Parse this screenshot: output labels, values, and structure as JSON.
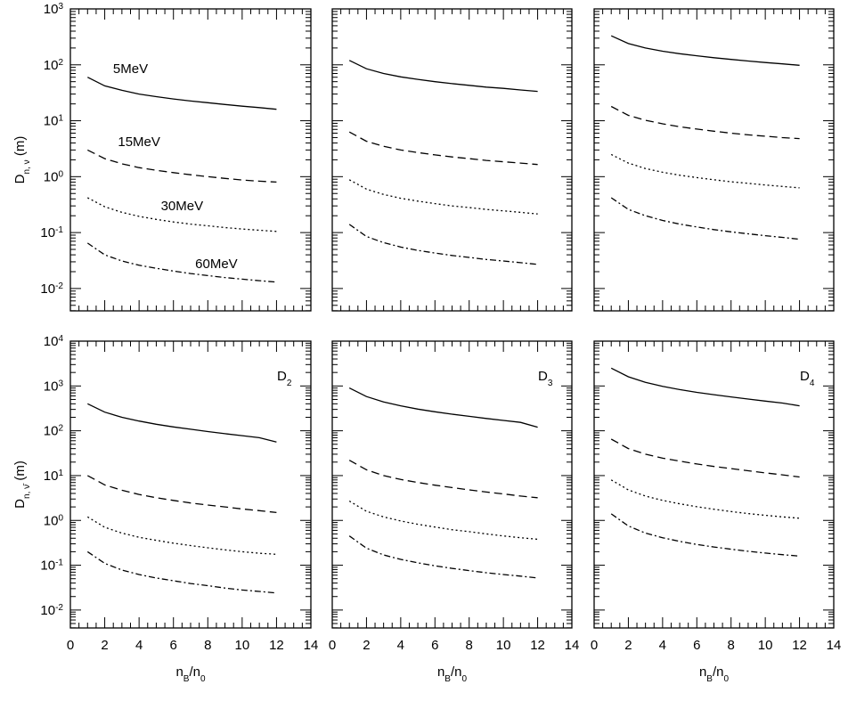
{
  "chart_data": {
    "type": "line",
    "x": [
      1,
      2,
      3,
      4,
      5,
      6,
      7,
      8,
      9,
      10,
      11,
      12
    ],
    "xlim": [
      0,
      14
    ],
    "x_ticks": [
      "0",
      "2",
      "4",
      "6",
      "8",
      "10",
      "12",
      "14"
    ],
    "xlabel": {
      "main": "n",
      "sub": "B",
      "sep": "/",
      "main2": "n",
      "sub2": "0"
    },
    "ylabel_top": {
      "main": "D",
      "sub": "n, ν",
      "unit": " (m)"
    },
    "ylabel_bottom": {
      "main": "D",
      "sub": "n, ν̄",
      "unit": " (m)"
    },
    "y_scale": "log",
    "rows": [
      {
        "ylim_exp": [
          -2.4,
          3
        ],
        "y_ticks": [
          {
            "base": "10",
            "exp": "3"
          },
          {
            "base": "10",
            "exp": "2"
          },
          {
            "base": "10",
            "exp": "1"
          },
          {
            "base": "10",
            "exp": "0"
          },
          {
            "base": "10",
            "exp": "-1"
          },
          {
            "base": "10",
            "exp": "-2"
          }
        ]
      },
      {
        "ylim_exp": [
          -2.4,
          4
        ],
        "y_ticks": [
          {
            "base": "10",
            "exp": "4"
          },
          {
            "base": "10",
            "exp": "3"
          },
          {
            "base": "10",
            "exp": "2"
          },
          {
            "base": "10",
            "exp": "1"
          },
          {
            "base": "10",
            "exp": "0"
          },
          {
            "base": "10",
            "exp": "-1"
          },
          {
            "base": "10",
            "exp": "-2"
          }
        ]
      }
    ],
    "series_styles": [
      {
        "name": "5MeV",
        "dash": "none"
      },
      {
        "name": "15MeV",
        "dash": "9 5"
      },
      {
        "name": "30MeV",
        "dash": "2 3"
      },
      {
        "name": "60MeV",
        "dash": "7 3 2 3"
      }
    ],
    "panels": [
      {
        "row": 0,
        "col": 0,
        "label": "",
        "series": [
          {
            "name": "5MeV",
            "values": [
              60,
              42,
              35,
              30,
              27,
              24.5,
              22.5,
              21,
              19.5,
              18.2,
              17.2,
              16
            ]
          },
          {
            "name": "15MeV",
            "values": [
              3.0,
              2.1,
              1.7,
              1.45,
              1.3,
              1.18,
              1.08,
              1.0,
              0.93,
              0.87,
              0.83,
              0.8
            ]
          },
          {
            "name": "30MeV",
            "values": [
              0.42,
              0.29,
              0.23,
              0.195,
              0.172,
              0.155,
              0.142,
              0.132,
              0.123,
              0.116,
              0.11,
              0.105
            ]
          },
          {
            "name": "60MeV",
            "values": [
              0.065,
              0.04,
              0.031,
              0.026,
              0.023,
              0.0205,
              0.0185,
              0.017,
              0.0157,
              0.0147,
              0.0138,
              0.013
            ]
          }
        ]
      },
      {
        "row": 0,
        "col": 1,
        "label": "",
        "series": [
          {
            "name": "5MeV",
            "values": [
              120,
              85,
              70,
              61,
              55,
              50,
              46,
              43,
              40,
              38,
              35.5,
              33.5
            ]
          },
          {
            "name": "15MeV",
            "values": [
              6.3,
              4.3,
              3.5,
              3.0,
              2.7,
              2.45,
              2.25,
              2.1,
              1.95,
              1.85,
              1.75,
              1.65
            ]
          },
          {
            "name": "30MeV",
            "values": [
              0.88,
              0.6,
              0.48,
              0.41,
              0.365,
              0.33,
              0.3,
              0.28,
              0.26,
              0.245,
              0.23,
              0.215
            ]
          },
          {
            "name": "60MeV",
            "values": [
              0.14,
              0.085,
              0.066,
              0.055,
              0.048,
              0.043,
              0.039,
              0.036,
              0.033,
              0.031,
              0.029,
              0.027
            ]
          }
        ]
      },
      {
        "row": 0,
        "col": 2,
        "label": "",
        "series": [
          {
            "name": "5MeV",
            "values": [
              330,
              240,
              200,
              175,
              158,
              145,
              134,
              125,
              117,
              110,
              104,
              98
            ]
          },
          {
            "name": "15MeV",
            "values": [
              18,
              12.5,
              10.2,
              8.8,
              7.8,
              7.1,
              6.5,
              6.0,
              5.6,
              5.3,
              5.0,
              4.8
            ]
          },
          {
            "name": "30MeV",
            "values": [
              2.5,
              1.75,
              1.4,
              1.2,
              1.06,
              0.96,
              0.88,
              0.81,
              0.76,
              0.71,
              0.67,
              0.63
            ]
          },
          {
            "name": "60MeV",
            "values": [
              0.42,
              0.26,
              0.2,
              0.165,
              0.142,
              0.126,
              0.113,
              0.103,
              0.095,
              0.088,
              0.082,
              0.076
            ]
          }
        ]
      },
      {
        "row": 1,
        "col": 0,
        "label": "D",
        "label_sub": "2",
        "series": [
          {
            "name": "5MeV",
            "values": [
              400,
              260,
              200,
              165,
              140,
              122,
              108,
              96,
              86,
              78,
              70,
              56
            ]
          },
          {
            "name": "15MeV",
            "values": [
              10,
              6.2,
              4.7,
              3.8,
              3.2,
              2.8,
              2.45,
              2.2,
              2.0,
              1.8,
              1.65,
              1.5
            ]
          },
          {
            "name": "30MeV",
            "values": [
              1.2,
              0.7,
              0.52,
              0.42,
              0.36,
              0.31,
              0.275,
              0.245,
              0.22,
              0.2,
              0.185,
              0.175
            ]
          },
          {
            "name": "60MeV",
            "values": [
              0.2,
              0.11,
              0.078,
              0.062,
              0.052,
              0.045,
              0.039,
              0.035,
              0.031,
              0.028,
              0.026,
              0.024
            ]
          }
        ]
      },
      {
        "row": 1,
        "col": 1,
        "label": "D",
        "label_sub": "3",
        "series": [
          {
            "name": "5MeV",
            "values": [
              900,
              580,
              440,
              360,
              305,
              265,
              235,
              210,
              188,
              170,
              154,
              120
            ]
          },
          {
            "name": "15MeV",
            "values": [
              22,
              13.5,
              10,
              8.2,
              7.0,
              6.1,
              5.4,
              4.8,
              4.3,
              3.9,
              3.5,
              3.2
            ]
          },
          {
            "name": "30MeV",
            "values": [
              2.7,
              1.6,
              1.2,
              0.97,
              0.82,
              0.71,
              0.62,
              0.56,
              0.5,
              0.45,
              0.41,
              0.38
            ]
          },
          {
            "name": "60MeV",
            "values": [
              0.45,
              0.24,
              0.17,
              0.135,
              0.113,
              0.097,
              0.085,
              0.076,
              0.068,
              0.062,
              0.057,
              0.052
            ]
          }
        ]
      },
      {
        "row": 1,
        "col": 2,
        "label": "D",
        "label_sub": "4",
        "series": [
          {
            "name": "5MeV",
            "values": [
              2500,
              1600,
              1200,
              980,
              830,
              720,
              640,
              570,
              510,
              460,
              415,
              360
            ]
          },
          {
            "name": "15MeV",
            "values": [
              65,
              40,
              30,
              24.5,
              21,
              18.2,
              16,
              14.3,
              12.8,
              11.5,
              10.4,
              9.3
            ]
          },
          {
            "name": "30MeV",
            "values": [
              8,
              4.8,
              3.5,
              2.8,
              2.35,
              2.02,
              1.78,
              1.58,
              1.42,
              1.3,
              1.2,
              1.12
            ]
          },
          {
            "name": "60MeV",
            "values": [
              1.4,
              0.75,
              0.52,
              0.41,
              0.34,
              0.29,
              0.255,
              0.228,
              0.205,
              0.187,
              0.172,
              0.16
            ]
          }
        ]
      }
    ],
    "annotations": [
      {
        "panel": 0,
        "text": "5MeV",
        "x": 3.5,
        "y": 85
      },
      {
        "panel": 0,
        "text": "15MeV",
        "x": 4.0,
        "y": 4.2
      },
      {
        "panel": 0,
        "text": "30MeV",
        "x": 6.5,
        "y": 0.3
      },
      {
        "panel": 0,
        "text": "60MeV",
        "x": 8.5,
        "y": 0.028
      }
    ]
  }
}
